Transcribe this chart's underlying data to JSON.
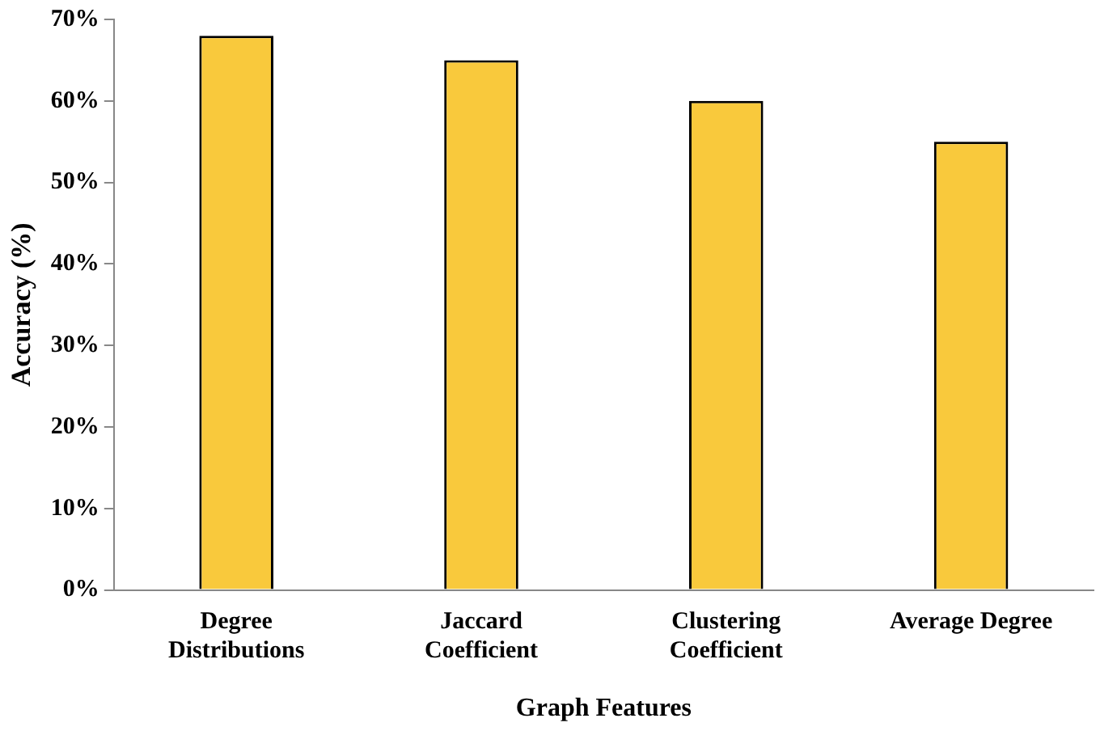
{
  "chart_data": {
    "type": "bar",
    "xlabel": "Graph Features",
    "ylabel": "Accuracy (%)",
    "categories": [
      "Degree Distributions",
      "Jaccard Coefficient",
      "Clustering Coefficient",
      "Average Degree"
    ],
    "values": [
      68,
      65,
      60,
      55
    ],
    "color": "#f9c93c",
    "ylim": [
      0,
      70
    ],
    "yticks": [
      {
        "value": 0,
        "label": "0%"
      },
      {
        "value": 10,
        "label": "10%"
      },
      {
        "value": 20,
        "label": "20%"
      },
      {
        "value": 30,
        "label": "30%"
      },
      {
        "value": 40,
        "label": "40%"
      },
      {
        "value": 50,
        "label": "50%"
      },
      {
        "value": 60,
        "label": "60%"
      },
      {
        "value": 70,
        "label": "70%"
      }
    ],
    "grid": false,
    "legend": false
  }
}
